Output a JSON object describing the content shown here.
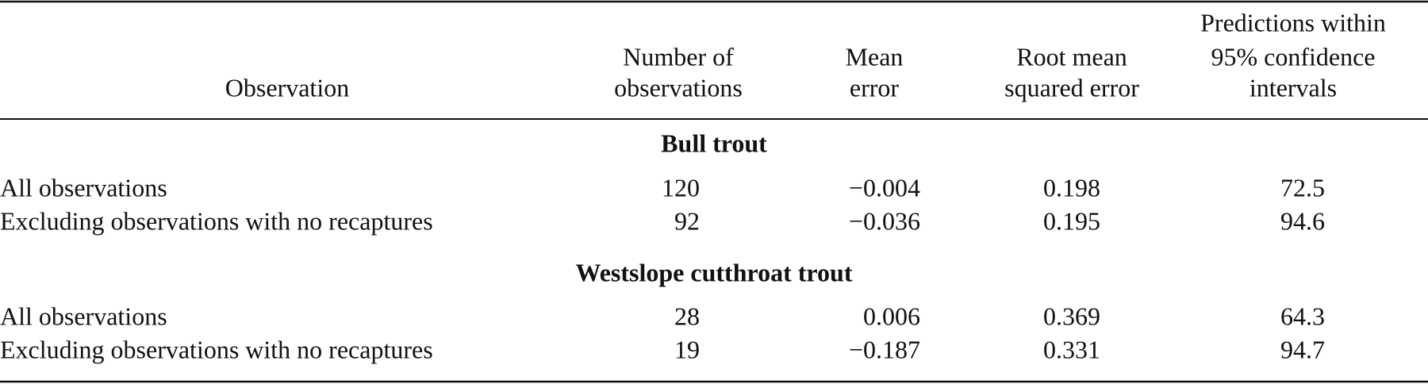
{
  "table": {
    "headers": [
      [
        "Observation"
      ],
      [
        "Number of",
        "observations"
      ],
      [
        "Mean",
        "error"
      ],
      [
        "Root mean",
        "squared error"
      ],
      [
        "Predictions within",
        "95% confidence",
        "intervals"
      ]
    ],
    "sections": [
      {
        "title": "Bull trout",
        "rows": [
          [
            "All observations",
            "120",
            "−0.004",
            "0.198",
            "72.5"
          ],
          [
            "Excluding observations with no recaptures",
            "92",
            "−0.036",
            "0.195",
            "94.6"
          ]
        ]
      },
      {
        "title": "Westslope cutthroat trout",
        "rows": [
          [
            "All observations",
            "28",
            "0.006",
            "0.369",
            "64.3"
          ],
          [
            "Excluding observations with no recaptures",
            "19",
            "−0.187",
            "0.331",
            "94.7"
          ]
        ]
      }
    ]
  }
}
